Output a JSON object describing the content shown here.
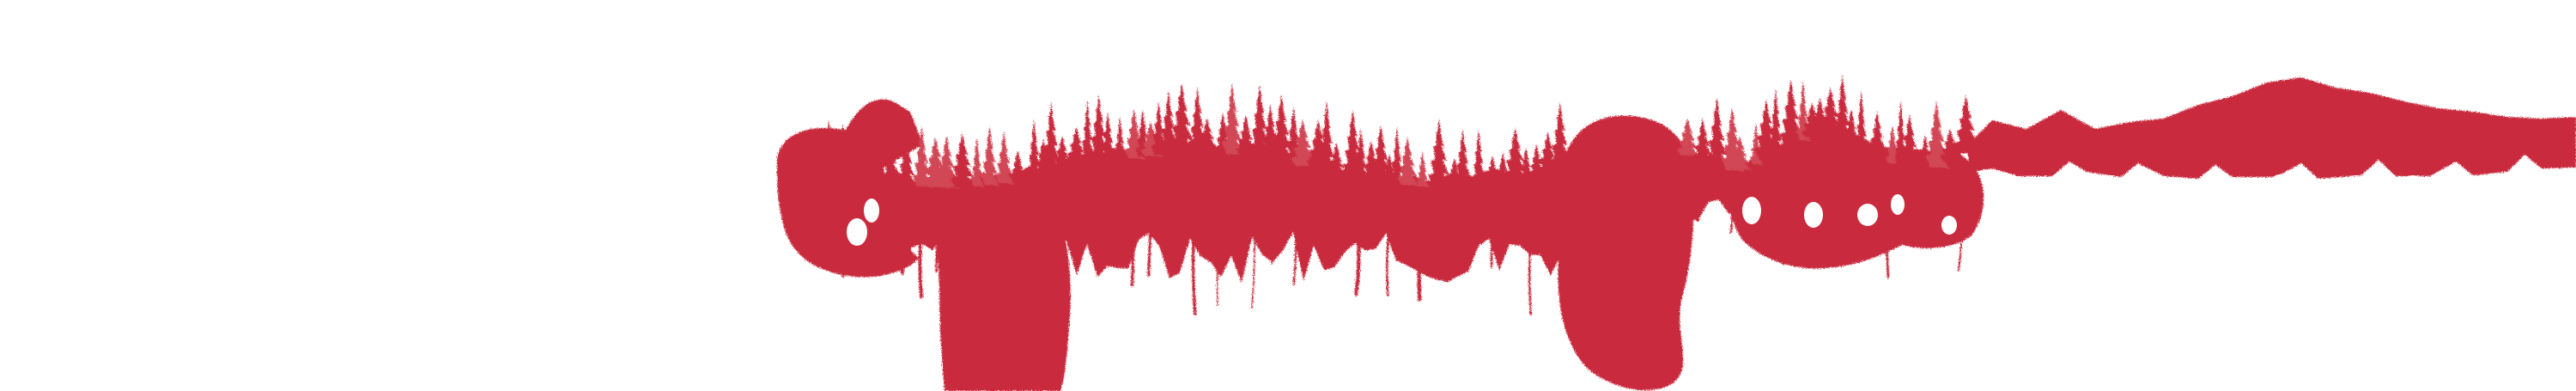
{
  "artwork": {
    "subject": "forest-treeline-brush-stroke",
    "colors": {
      "background": "#ffffff",
      "ink": "#c92a3e",
      "ink_light": "#d24656"
    }
  }
}
